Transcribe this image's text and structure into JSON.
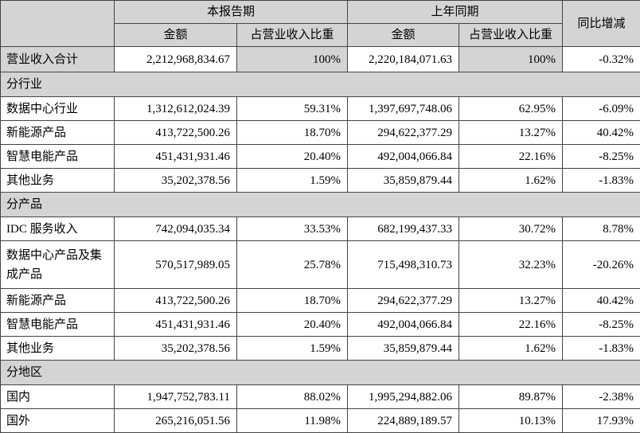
{
  "table": {
    "colors": {
      "header_bg": "#d4d4d4",
      "border": "#444444",
      "row_bg": "#ffffff",
      "text": "#000000"
    },
    "header": {
      "corner": "",
      "current_period": "本报告期",
      "prior_period": "上年同期",
      "yoy_change": "同比增减",
      "amount": "金额",
      "pct_of_revenue": "占营业收入比重"
    },
    "rows": [
      {
        "type": "data",
        "total": true,
        "label": "营业收入合计",
        "cur_amount": "2,212,968,834.67",
        "cur_pct": "100%",
        "prior_amount": "2,220,184,071.63",
        "prior_pct": "100%",
        "yoy": "-0.32%"
      },
      {
        "type": "section",
        "label": "分行业"
      },
      {
        "type": "data",
        "label": "数据中心行业",
        "cur_amount": "1,312,612,024.39",
        "cur_pct": "59.31%",
        "prior_amount": "1,397,697,748.06",
        "prior_pct": "62.95%",
        "yoy": "-6.09%"
      },
      {
        "type": "data",
        "label": "新能源产品",
        "cur_amount": "413,722,500.26",
        "cur_pct": "18.70%",
        "prior_amount": "294,622,377.29",
        "prior_pct": "13.27%",
        "yoy": "40.42%"
      },
      {
        "type": "data",
        "label": "智慧电能产品",
        "cur_amount": "451,431,931.46",
        "cur_pct": "20.40%",
        "prior_amount": "492,004,066.84",
        "prior_pct": "22.16%",
        "yoy": "-8.25%"
      },
      {
        "type": "data",
        "label": "其他业务",
        "cur_amount": "35,202,378.56",
        "cur_pct": "1.59%",
        "prior_amount": "35,859,879.44",
        "prior_pct": "1.62%",
        "yoy": "-1.83%"
      },
      {
        "type": "section",
        "label": "分产品"
      },
      {
        "type": "data",
        "label": "IDC 服务收入",
        "cur_amount": "742,094,035.34",
        "cur_pct": "33.53%",
        "prior_amount": "682,199,437.33",
        "prior_pct": "30.72%",
        "yoy": "8.78%"
      },
      {
        "type": "data",
        "tall": true,
        "label": "数据中心产品及集成产品",
        "cur_amount": "570,517,989.05",
        "cur_pct": "25.78%",
        "prior_amount": "715,498,310.73",
        "prior_pct": "32.23%",
        "yoy": "-20.26%"
      },
      {
        "type": "data",
        "label": "新能源产品",
        "cur_amount": "413,722,500.26",
        "cur_pct": "18.70%",
        "prior_amount": "294,622,377.29",
        "prior_pct": "13.27%",
        "yoy": "40.42%"
      },
      {
        "type": "data",
        "label": "智慧电能产品",
        "cur_amount": "451,431,931.46",
        "cur_pct": "20.40%",
        "prior_amount": "492,004,066.84",
        "prior_pct": "22.16%",
        "yoy": "-8.25%"
      },
      {
        "type": "data",
        "label": "其他业务",
        "cur_amount": "35,202,378.56",
        "cur_pct": "1.59%",
        "prior_amount": "35,859,879.44",
        "prior_pct": "1.62%",
        "yoy": "-1.83%"
      },
      {
        "type": "section",
        "label": "分地区"
      },
      {
        "type": "data",
        "label": "国内",
        "cur_amount": "1,947,752,783.11",
        "cur_pct": "88.02%",
        "prior_amount": "1,995,294,882.06",
        "prior_pct": "89.87%",
        "yoy": "-2.38%"
      },
      {
        "type": "data",
        "label": "国外",
        "cur_amount": "265,216,051.56",
        "cur_pct": "11.98%",
        "prior_amount": "224,889,189.57",
        "prior_pct": "10.13%",
        "yoy": "17.93%"
      }
    ]
  }
}
